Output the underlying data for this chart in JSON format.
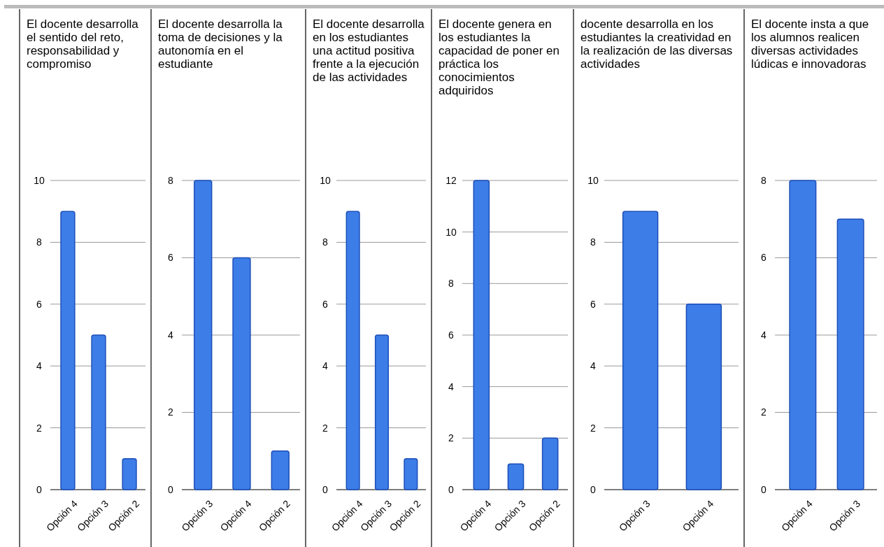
{
  "chart_data": [
    {
      "type": "bar",
      "title": "El docente desarrolla el sentido del reto, responsabilidad y compromiso",
      "categories": [
        "Opción 4",
        "Opción 3",
        "Opción 2"
      ],
      "values": [
        9,
        5,
        1
      ],
      "color": "#3d7de8",
      "ylim": [
        0,
        10
      ],
      "yticks": [
        0,
        2,
        4,
        6,
        8,
        10
      ],
      "grid": "y"
    },
    {
      "type": "bar",
      "title": "El docente desarrolla la toma de decisiones y la autonomía en el estudiante",
      "categories": [
        "Opción 3",
        "Opción 4",
        "Opción 2"
      ],
      "values": [
        8,
        6,
        1
      ],
      "color": "#3d7de8",
      "ylim": [
        0,
        8
      ],
      "yticks": [
        0,
        2,
        4,
        6,
        8
      ],
      "grid": "y"
    },
    {
      "type": "bar",
      "title": "El docente desarrolla en los estudiantes una actitud positiva frente a la ejecución de las actividades",
      "categories": [
        "Opción 4",
        "Opción 3",
        "Opción 2"
      ],
      "values": [
        9,
        5,
        1
      ],
      "color": "#3d7de8",
      "ylim": [
        0,
        10
      ],
      "yticks": [
        0,
        2,
        4,
        6,
        8,
        10
      ],
      "grid": "y"
    },
    {
      "type": "bar",
      "title": "El docente genera en los estudiantes la capacidad de poner en práctica los conocimientos adquiridos",
      "categories": [
        "Opción 4",
        "Opción 3",
        "Opción 2"
      ],
      "values": [
        12,
        1,
        2
      ],
      "color": "#3d7de8",
      "ylim": [
        0,
        12
      ],
      "yticks": [
        0,
        2,
        4,
        6,
        8,
        10,
        12
      ],
      "grid": "y"
    },
    {
      "type": "bar",
      "title": "docente desarrolla en los estudiantes la creatividad en la realización de las diversas actividades",
      "categories": [
        "Opción 3",
        "Opción 4"
      ],
      "values": [
        9,
        6
      ],
      "color": "#3d7de8",
      "ylim": [
        0,
        10
      ],
      "yticks": [
        0,
        2,
        4,
        6,
        8,
        10
      ],
      "grid": "y"
    },
    {
      "type": "bar",
      "title": "El docente insta a que los alumnos realicen diversas actividades lúdicas e innovadoras",
      "categories": [
        "Opción 4",
        "Opción 3"
      ],
      "values": [
        8,
        7
      ],
      "color": "#3d7de8",
      "ylim": [
        0,
        8
      ],
      "yticks": [
        0,
        2,
        4,
        6,
        8
      ],
      "grid": "y"
    }
  ]
}
